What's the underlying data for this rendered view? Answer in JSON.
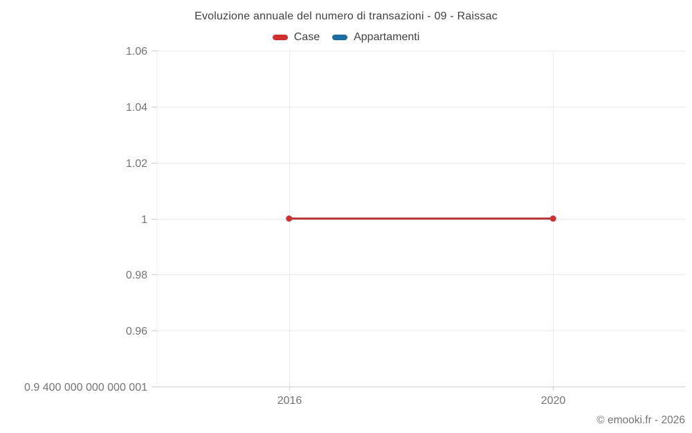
{
  "title": "Evoluzione annuale del numero di transazioni - 09 - Raissac",
  "legend": {
    "items": [
      {
        "label": "Case",
        "color": "#d32f2f"
      },
      {
        "label": "Appartamenti",
        "color": "#1a6da6"
      }
    ]
  },
  "footer": {
    "credit": "© emooki.fr - 2026"
  },
  "chart_data": {
    "type": "line",
    "title": "Evoluzione annuale del numero di transazioni - 09 - Raissac",
    "xlabel": "",
    "ylabel": "",
    "xlim": [
      2014,
      2022
    ],
    "ylim": [
      0.94,
      1.06
    ],
    "grid": true,
    "legend_position": "top",
    "x_ticks": [
      {
        "value": 2016,
        "label": "2016"
      },
      {
        "value": 2020,
        "label": "2020"
      }
    ],
    "y_ticks": [
      {
        "value": 1.06,
        "label": "1.06"
      },
      {
        "value": 1.04,
        "label": "1.04"
      },
      {
        "value": 1.02,
        "label": "1.02"
      },
      {
        "value": 1.0,
        "label": "1"
      },
      {
        "value": 0.98,
        "label": "0.98"
      },
      {
        "value": 0.96,
        "label": "0.96"
      },
      {
        "value": 0.94,
        "label": "0.9 400 000 000 000 001"
      }
    ],
    "series": [
      {
        "name": "Case",
        "color": "#d32f2f",
        "points": [
          {
            "x": 2016,
            "y": 1
          },
          {
            "x": 2020,
            "y": 1
          }
        ]
      },
      {
        "name": "Appartamenti",
        "color": "#1a6da6",
        "points": []
      }
    ]
  }
}
